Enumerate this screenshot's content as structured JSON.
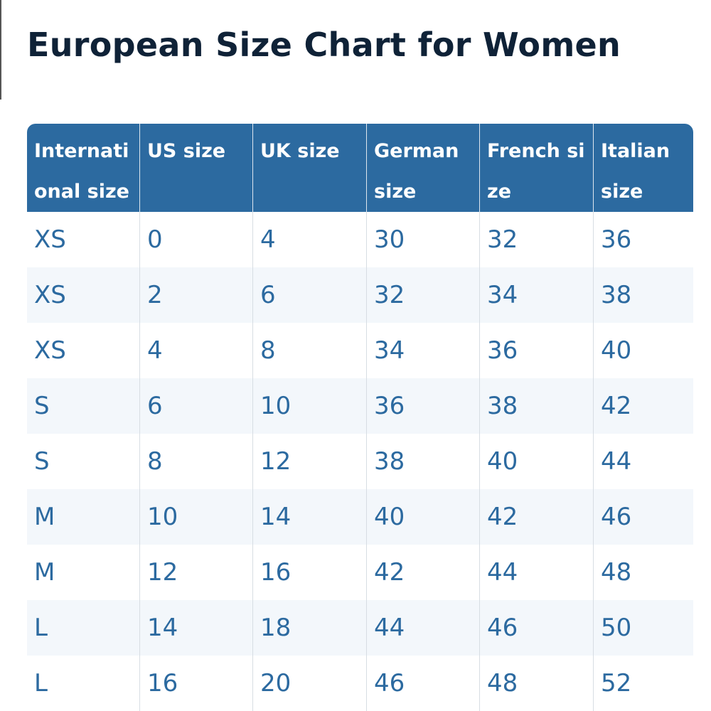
{
  "title": "European Size Chart for Women",
  "table": {
    "headers": [
      "International size",
      "US size",
      "UK size",
      "German size",
      "French size",
      "Italian size"
    ],
    "rows": [
      [
        "XS",
        "0",
        "4",
        "30",
        "32",
        "36"
      ],
      [
        "XS",
        "2",
        "6",
        "32",
        "34",
        "38"
      ],
      [
        "XS",
        "4",
        "8",
        "34",
        "36",
        "40"
      ],
      [
        "S",
        "6",
        "10",
        "36",
        "38",
        "42"
      ],
      [
        "S",
        "8",
        "12",
        "38",
        "40",
        "44"
      ],
      [
        "M",
        "10",
        "14",
        "40",
        "42",
        "46"
      ],
      [
        "M",
        "12",
        "16",
        "42",
        "44",
        "48"
      ],
      [
        "L",
        "14",
        "18",
        "44",
        "46",
        "50"
      ],
      [
        "L",
        "16",
        "20",
        "46",
        "48",
        "52"
      ]
    ]
  },
  "colors": {
    "header_bg": "#2c6aa0",
    "cell_text": "#2c6aa0",
    "title_text": "#0f2237",
    "stripe_bg": "#f3f7fb"
  }
}
